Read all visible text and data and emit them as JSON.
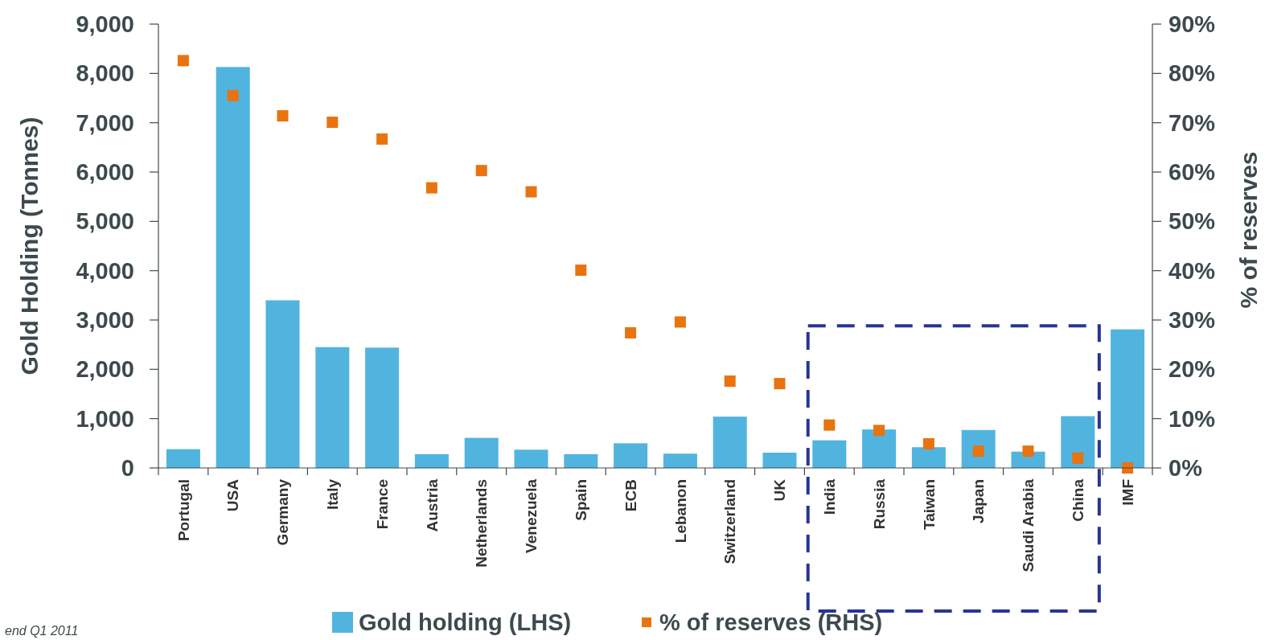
{
  "chart_data": {
    "type": "bar",
    "ylabel": "Gold Holding (Tonnes)",
    "y2label": "% of reserves",
    "categories": [
      "Portugal",
      "USA",
      "Germany",
      "Italy",
      "France",
      "Austria",
      "Netherlands",
      "Venezuela",
      "Spain",
      "ECB",
      "Lebanon",
      "Switzerland",
      "UK",
      "India",
      "Russia",
      "Taiwan",
      "Japan",
      "Saudi Arabia",
      "China",
      "IMF"
    ],
    "series": [
      {
        "name": "Gold holding (LHS)",
        "type": "bar",
        "color": "#51b4df",
        "values": [
          380,
          8130,
          3400,
          2450,
          2440,
          280,
          610,
          370,
          280,
          500,
          290,
          1040,
          310,
          560,
          780,
          420,
          770,
          330,
          1050,
          2810
        ]
      },
      {
        "name": "% of reserves (RHS)",
        "type": "scatter",
        "axis": "y2",
        "color": "#e8730f",
        "values": [
          82.6,
          75.5,
          71.4,
          70.1,
          66.7,
          56.8,
          60.3,
          56.0,
          40.1,
          27.4,
          29.6,
          17.6,
          17.1,
          8.7,
          7.6,
          4.9,
          3.4,
          3.4,
          2.0,
          0
        ]
      }
    ],
    "ylim": [
      0,
      9000
    ],
    "yticks": [
      {
        "value": 0,
        "label": "0"
      },
      {
        "value": 1000,
        "label": "1,000"
      },
      {
        "value": 2000,
        "label": "2,000"
      },
      {
        "value": 3000,
        "label": "3,000"
      },
      {
        "value": 4000,
        "label": "4,000"
      },
      {
        "value": 5000,
        "label": "5,000"
      },
      {
        "value": 6000,
        "label": "6,000"
      },
      {
        "value": 7000,
        "label": "7,000"
      },
      {
        "value": 8000,
        "label": "8,000"
      },
      {
        "value": 9000,
        "label": "9,000"
      }
    ],
    "y2lim": [
      0,
      90
    ],
    "y2ticks": [
      {
        "value": 0,
        "label": "0%"
      },
      {
        "value": 10,
        "label": "10%"
      },
      {
        "value": 20,
        "label": "20%"
      },
      {
        "value": 30,
        "label": "30%"
      },
      {
        "value": 40,
        "label": "40%"
      },
      {
        "value": 50,
        "label": "50%"
      },
      {
        "value": 60,
        "label": "60%"
      },
      {
        "value": 70,
        "label": "70%"
      },
      {
        "value": 80,
        "label": "80%"
      },
      {
        "value": 90,
        "label": "90%"
      }
    ],
    "marker": "square",
    "legend": "bottom",
    "grid": false,
    "annotations": [
      "end Q1 2011"
    ]
  }
}
